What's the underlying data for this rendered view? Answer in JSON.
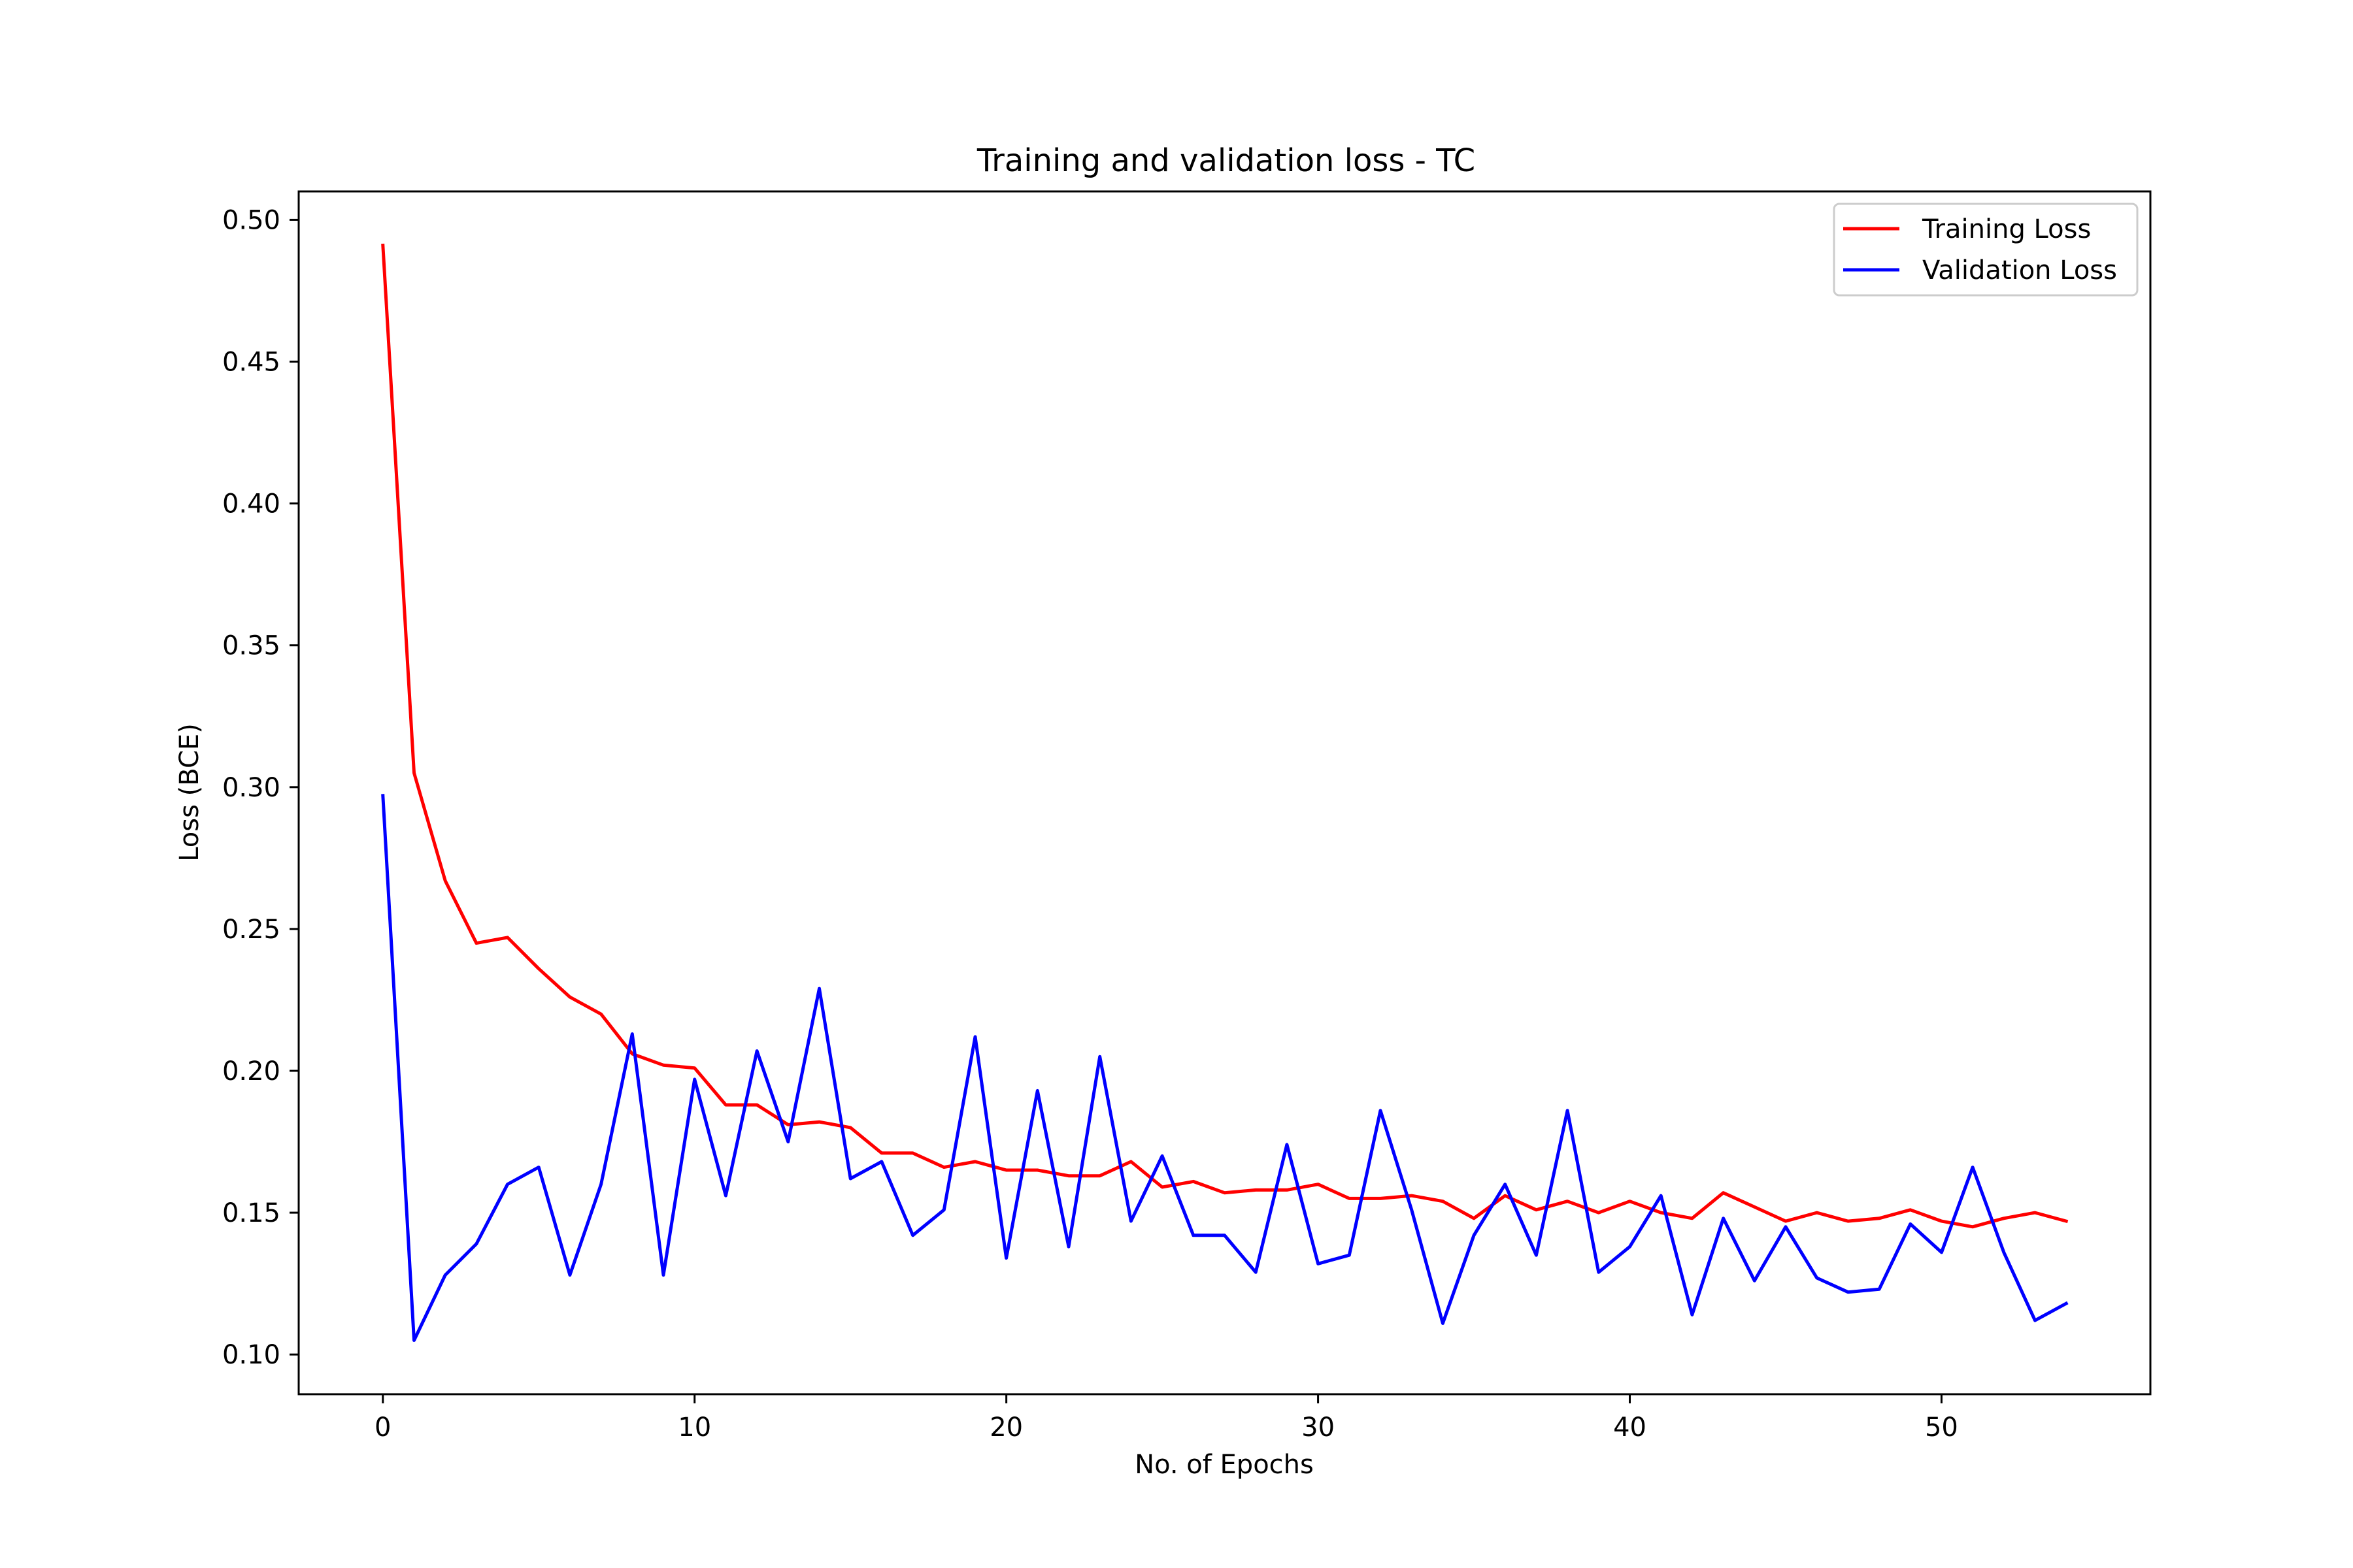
{
  "chart_data": {
    "type": "line",
    "title": "Training and validation loss - TC",
    "xlabel": "No. of Epochs",
    "ylabel": "Loss (BCE)",
    "xlim": [
      -2.7,
      56.7
    ],
    "ylim": [
      0.086,
      0.51
    ],
    "xticks": [
      0,
      10,
      20,
      30,
      40,
      50
    ],
    "xtick_labels": [
      "0",
      "10",
      "20",
      "30",
      "40",
      "50"
    ],
    "yticks": [
      0.1,
      0.15,
      0.2,
      0.25,
      0.3,
      0.35,
      0.4,
      0.45,
      0.5
    ],
    "ytick_labels": [
      "0.10",
      "0.15",
      "0.20",
      "0.25",
      "0.30",
      "0.35",
      "0.40",
      "0.45",
      "0.50"
    ],
    "grid": false,
    "legend_position": "top-right",
    "x": [
      0,
      1,
      2,
      3,
      4,
      5,
      6,
      7,
      8,
      9,
      10,
      11,
      12,
      13,
      14,
      15,
      16,
      17,
      18,
      19,
      20,
      21,
      22,
      23,
      24,
      25,
      26,
      27,
      28,
      29,
      30,
      31,
      32,
      33,
      34,
      35,
      36,
      37,
      38,
      39,
      40,
      41,
      42,
      43,
      44,
      45,
      46,
      47,
      48,
      49,
      50,
      51,
      52,
      53,
      54
    ],
    "series": [
      {
        "name": "Training Loss",
        "color": "#ff0000",
        "values": [
          0.491,
          0.305,
          0.267,
          0.245,
          0.247,
          0.236,
          0.226,
          0.22,
          0.206,
          0.202,
          0.201,
          0.188,
          0.188,
          0.181,
          0.182,
          0.18,
          0.171,
          0.171,
          0.166,
          0.168,
          0.165,
          0.165,
          0.163,
          0.163,
          0.168,
          0.159,
          0.161,
          0.157,
          0.158,
          0.158,
          0.16,
          0.155,
          0.155,
          0.156,
          0.154,
          0.148,
          0.156,
          0.151,
          0.154,
          0.15,
          0.154,
          0.15,
          0.148,
          0.157,
          0.152,
          0.147,
          0.15,
          0.147,
          0.148,
          0.151,
          0.147,
          0.145,
          0.148,
          0.15,
          0.147
        ]
      },
      {
        "name": "Validation Loss",
        "color": "#0000ff",
        "values": [
          0.297,
          0.105,
          0.128,
          0.139,
          0.16,
          0.166,
          0.128,
          0.16,
          0.213,
          0.128,
          0.197,
          0.156,
          0.207,
          0.175,
          0.229,
          0.162,
          0.168,
          0.142,
          0.151,
          0.212,
          0.134,
          0.193,
          0.138,
          0.205,
          0.147,
          0.17,
          0.142,
          0.142,
          0.129,
          0.174,
          0.132,
          0.135,
          0.186,
          0.151,
          0.111,
          0.142,
          0.16,
          0.135,
          0.186,
          0.129,
          0.138,
          0.156,
          0.114,
          0.148,
          0.126,
          0.145,
          0.127,
          0.122,
          0.123,
          0.146,
          0.136,
          0.166,
          0.136,
          0.112,
          0.118
        ]
      }
    ]
  }
}
